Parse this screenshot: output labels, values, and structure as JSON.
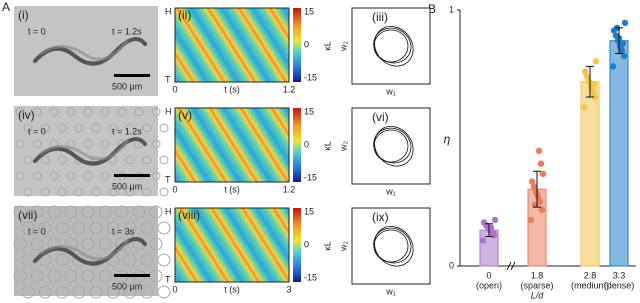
{
  "figure": {
    "panel_a_label": "A",
    "panel_b_label": "B",
    "rows": [
      {
        "image_label": "(i)",
        "t_start": "t = 0",
        "t_end": "t = 1.2s",
        "scale_bar": "500 μm",
        "kymo_label": "(ii)",
        "kymo_head": "H",
        "kymo_tail": "T",
        "kymo_x_start": "0",
        "kymo_x_label": "t (s)",
        "kymo_x_end": "1.2",
        "colorbar_ticks": [
          15,
          0,
          -15
        ],
        "colorbar_label": "κL",
        "phase_label": "(iii)",
        "phase_y": "w₂",
        "phase_x": "w₁"
      },
      {
        "image_label": "(iv)",
        "t_start": "t = 0",
        "t_end": "t = 1.2s",
        "scale_bar": "500 μm",
        "kymo_label": "(v)",
        "kymo_head": "H",
        "kymo_tail": "T",
        "kymo_x_start": "0",
        "kymo_x_label": "t (s)",
        "kymo_x_end": "1.2",
        "colorbar_ticks": [
          15,
          0,
          -15
        ],
        "colorbar_label": "κL",
        "phase_label": "(vi)",
        "phase_y": "w₂",
        "phase_x": "w₁"
      },
      {
        "image_label": "(vii)",
        "t_start": "t = 0",
        "t_end": "t = 3s",
        "scale_bar": "500 μm",
        "kymo_label": "(viii)",
        "kymo_head": "H",
        "kymo_tail": "T",
        "kymo_x_start": "0",
        "kymo_x_label": "t (s)",
        "kymo_x_end": "3",
        "colorbar_ticks": [
          15,
          0,
          -15
        ],
        "colorbar_label": "κL",
        "phase_label": "(ix)",
        "phase_y": "w₂",
        "phase_x": "w₁"
      }
    ]
  },
  "chart_data": {
    "type": "bar",
    "categories": [
      "0",
      "1.8",
      "2.8",
      "3.3"
    ],
    "category_notes": [
      "(open)",
      "(sparse)",
      "(medium)",
      "(dense)"
    ],
    "xlabel": "L/d",
    "ylabel": "η",
    "ylim": [
      0,
      1
    ],
    "yticks": [
      0,
      1
    ],
    "values": [
      0.14,
      0.3,
      0.72,
      0.88
    ],
    "errors": [
      0.025,
      0.07,
      0.06,
      0.05
    ],
    "colors": [
      "#a974c9",
      "#ec7b5c",
      "#f5c54a",
      "#1f7fcc"
    ],
    "points": [
      [
        0.1,
        0.12,
        0.13,
        0.14,
        0.15,
        0.16,
        0.17,
        0.18,
        0.13,
        0.15
      ],
      [
        0.18,
        0.22,
        0.25,
        0.27,
        0.29,
        0.31,
        0.33,
        0.36,
        0.4,
        0.45,
        0.28,
        0.24
      ],
      [
        0.62,
        0.66,
        0.68,
        0.7,
        0.72,
        0.74,
        0.76,
        0.8,
        0.71,
        0.69
      ],
      [
        0.78,
        0.82,
        0.84,
        0.86,
        0.88,
        0.9,
        0.92,
        0.95,
        0.87,
        0.85,
        0.89,
        0.93
      ]
    ]
  }
}
